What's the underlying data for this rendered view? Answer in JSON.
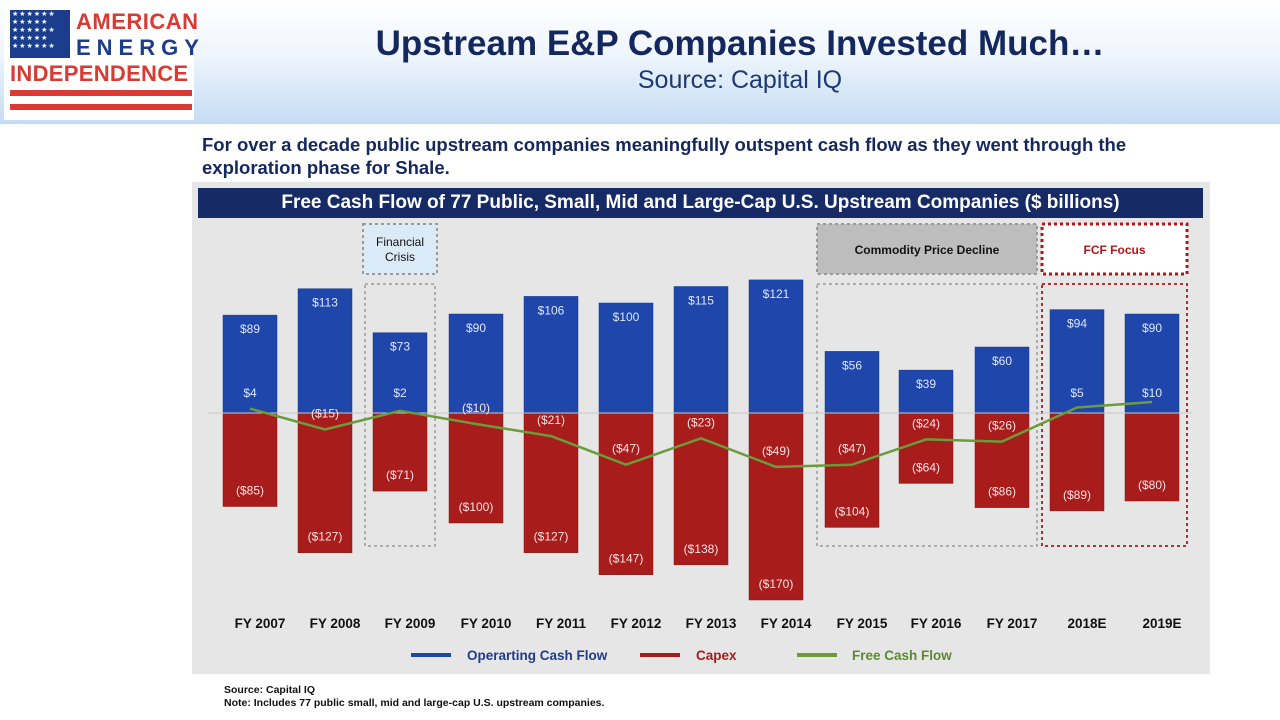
{
  "header": {
    "title": "Upstream E&P Companies Invested Much…",
    "subtitle": "Source: Capital IQ"
  },
  "logo": {
    "line1": "AMERICAN",
    "line2": "ENERGY",
    "line3": "INDEPENDENCE",
    "stars": "★★★★★★\n★★★★★\n★★★★★★\n★★★★★\n★★★★★★"
  },
  "intro_text": "For over a decade public upstream companies meaningfully outspent cash flow as they went through the exploration phase for Shale.",
  "footer": {
    "source": "Source: Capital IQ",
    "note": "Note: Includes 77 public small, mid and large-cap U.S. upstream companies."
  },
  "colors": {
    "ocf": "#1f46aa",
    "capex": "#a81c1c",
    "fcf": "#6b9b3a",
    "banner": "#162a66",
    "fcf_focus": "#b01818"
  },
  "chart_data": {
    "type": "bar",
    "title": "Free Cash Flow of 77 Public, Small, Mid and Large-Cap U.S. Upstream Companies ($ billions)",
    "categories": [
      "FY 2007",
      "FY 2008",
      "FY 2009",
      "FY 2010",
      "FY 2011",
      "FY 2012",
      "FY 2013",
      "FY 2014",
      "FY 2015",
      "FY 2016",
      "FY 2017",
      "2018E",
      "2019E"
    ],
    "series": [
      {
        "name": "Operarting Cash Flow",
        "kind": "bar",
        "values": [
          89,
          113,
          73,
          90,
          106,
          100,
          115,
          121,
          56,
          39,
          60,
          94,
          90
        ],
        "labels": [
          "$89",
          "$113",
          "$73",
          "$90",
          "$106",
          "$100",
          "$115",
          "$121",
          "$56",
          "$39",
          "$60",
          "$94",
          "$90"
        ]
      },
      {
        "name": "Capex",
        "kind": "bar",
        "values": [
          -85,
          -127,
          -71,
          -100,
          -127,
          -147,
          -138,
          -170,
          -104,
          -64,
          -86,
          -89,
          -80
        ],
        "labels": [
          "($85)",
          "($127)",
          "($71)",
          "($100)",
          "($127)",
          "($147)",
          "($138)",
          "($170)",
          "($104)",
          "($64)",
          "($86)",
          "($89)",
          "($80)"
        ]
      },
      {
        "name": "Free Cash Flow",
        "kind": "line",
        "values": [
          4,
          -15,
          2,
          -10,
          -21,
          -47,
          -23,
          -49,
          -47,
          -24,
          -26,
          5,
          10
        ],
        "labels": [
          "$4",
          "($15)",
          "$2",
          "($10)",
          "($21)",
          "($47)",
          "($23)",
          "($49)",
          "($47)",
          "($24)",
          "($26)",
          "$5",
          "$10"
        ]
      }
    ],
    "ylim": [
      -170,
      121
    ],
    "grid": false,
    "legend": "bottom",
    "annotations": [
      {
        "text": "Financial Crisis",
        "lines": [
          "Financial",
          "Crisis"
        ],
        "from": "FY 2009",
        "to": "FY 2009",
        "style": "gray-dotted"
      },
      {
        "text": "Commodity Price Decline",
        "lines": [
          "Commodity Price Decline"
        ],
        "from": "FY 2015",
        "to": "FY 2017",
        "style": "gray-filled"
      },
      {
        "text": "FCF Focus",
        "lines": [
          "FCF Focus"
        ],
        "from": "2018E",
        "to": "2019E",
        "style": "red-dotted"
      }
    ]
  }
}
